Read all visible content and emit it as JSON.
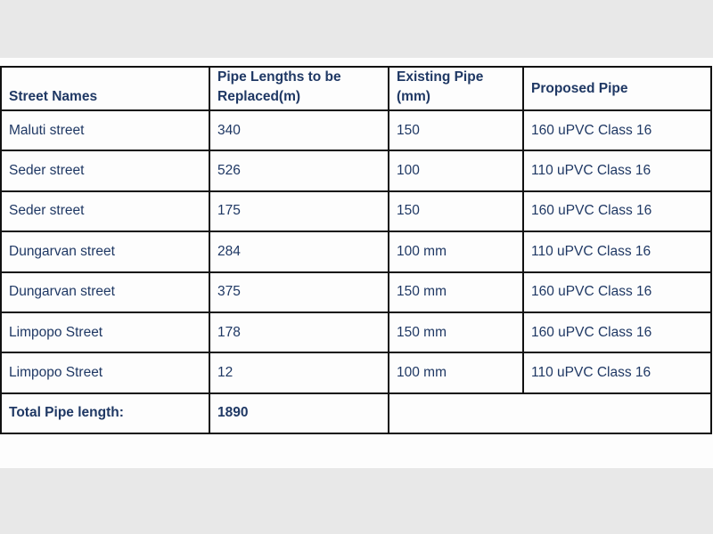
{
  "table": {
    "headers": [
      "Street Names",
      "Pipe Lengths to be Replaced(m)",
      "Existing Pipe (mm)",
      "Proposed Pipe"
    ],
    "rows": [
      [
        "Maluti street",
        "340",
        "150",
        "160 uPVC Class 16"
      ],
      [
        "Seder street",
        "526",
        "100",
        "110 uPVC Class 16"
      ],
      [
        "Seder street",
        "175",
        "150",
        "160 uPVC Class 16"
      ],
      [
        "Dungarvan street",
        "284",
        "100 mm",
        "110 uPVC Class 16"
      ],
      [
        "Dungarvan street",
        "375",
        "150 mm",
        "160 uPVC Class 16"
      ],
      [
        "Limpopo Street",
        "178",
        "150 mm",
        "160 uPVC Class 16"
      ],
      [
        "Limpopo Street",
        "12",
        "100 mm",
        "110 uPVC Class 16"
      ]
    ],
    "total_label": "Total Pipe length:",
    "total_value": "1890"
  }
}
